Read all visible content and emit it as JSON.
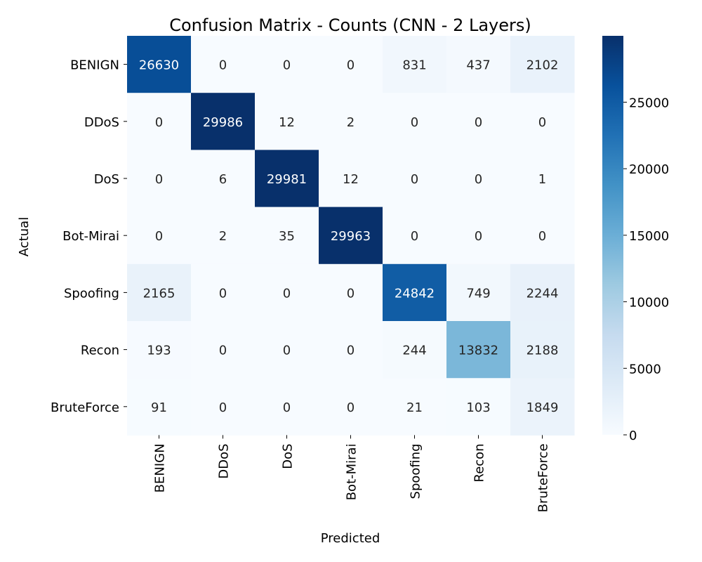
{
  "chart_data": {
    "type": "heatmap",
    "title": "Confusion Matrix - Counts (CNN - 2 Layers)",
    "xlabel": "Predicted",
    "ylabel": "Actual",
    "row_labels": [
      "BENIGN",
      "DDoS",
      "DoS",
      "Bot-Mirai",
      "Spoofing",
      "Recon",
      "BruteForce"
    ],
    "col_labels": [
      "BENIGN",
      "DDoS",
      "DoS",
      "Bot-Mirai",
      "Spoofing",
      "Recon",
      "BruteForce"
    ],
    "values": [
      [
        26630,
        0,
        0,
        0,
        831,
        437,
        2102
      ],
      [
        0,
        29986,
        12,
        2,
        0,
        0,
        0
      ],
      [
        0,
        6,
        29981,
        12,
        0,
        0,
        1
      ],
      [
        0,
        2,
        35,
        29963,
        0,
        0,
        0
      ],
      [
        2165,
        0,
        0,
        0,
        24842,
        749,
        2244
      ],
      [
        193,
        0,
        0,
        0,
        244,
        13832,
        2188
      ],
      [
        91,
        0,
        0,
        0,
        21,
        103,
        1849
      ]
    ],
    "colormap": "Blues",
    "vmin": 0,
    "vmax": 29986,
    "colorbar_ticks": [
      0,
      5000,
      10000,
      15000,
      20000,
      25000
    ],
    "annotations_shown": true,
    "grid": false
  }
}
